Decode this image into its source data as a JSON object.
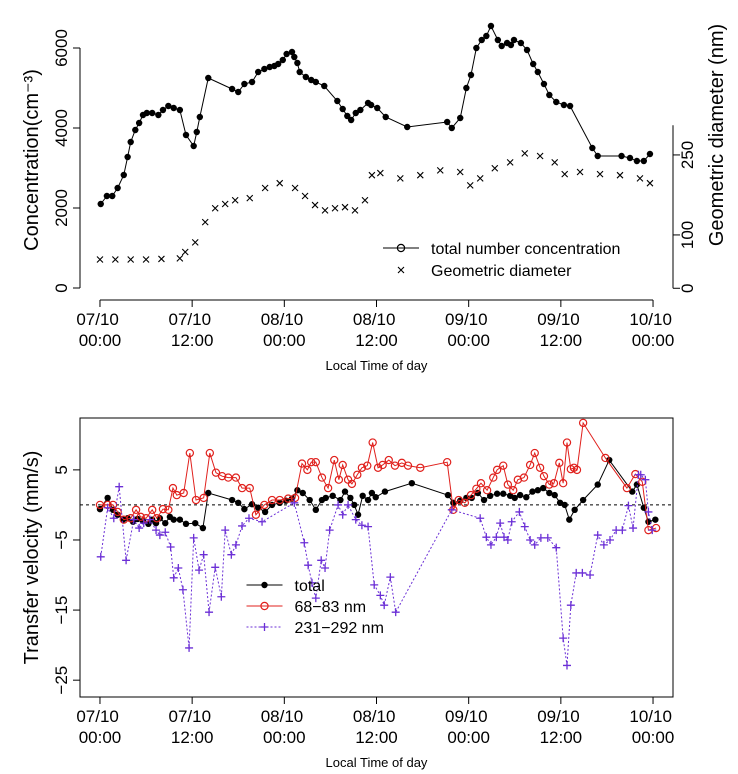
{
  "chart_data": [
    {
      "type": "line",
      "xlabel": "Local Time of day",
      "ylabel": "Concentration(cm⁻³)",
      "y2label": "Geometric diameter (nm)",
      "xlim": [
        -2.6,
        74.6
      ],
      "xticks": [
        {
          "value": 0,
          "label": "07/10 00:00"
        },
        {
          "value": 12,
          "label": "07/10 12:00"
        },
        {
          "value": 24,
          "label": "08/10 00:00"
        },
        {
          "value": 36,
          "label": "08/10 12:00"
        },
        {
          "value": 48,
          "label": "09/10 00:00"
        },
        {
          "value": 60,
          "label": "09/10 12:00"
        },
        {
          "value": 72,
          "label": "10/10 00:00"
        }
      ],
      "ylim": [
        -300,
        6700
      ],
      "yticks": [
        0,
        2000,
        4000,
        6000
      ],
      "y2lim": [
        -22,
        503
      ],
      "y2ticks": [
        0,
        100,
        250
      ],
      "box": false,
      "legend": "bottom right",
      "series": [
        {
          "name": "total number concentration",
          "color": "#000000",
          "marker": "dot",
          "legend_marker": "circle",
          "line": true,
          "x": [
            0.1,
            0.9,
            1.6,
            2.3,
            3.1,
            3.6,
            4.0,
            4.6,
            5.1,
            5.6,
            6.1,
            6.8,
            7.6,
            8.2,
            8.9,
            9.6,
            10.4,
            11.2,
            12.2,
            12.6,
            13.0,
            14.1,
            17.2,
            18.0,
            18.8,
            19.8,
            20.6,
            21.4,
            22.1,
            22.7,
            23.2,
            23.8,
            24.3,
            25.0,
            25.3,
            25.7,
            26.0,
            26.8,
            27.5,
            28.1,
            29.2,
            30.9,
            31.6,
            32.2,
            32.7,
            33.3,
            33.9,
            34.9,
            35.3,
            36.1,
            37.2,
            40.0,
            45.2,
            45.8,
            46.9,
            47.7,
            48.3,
            49.0,
            49.7,
            50.3,
            50.9,
            51.8,
            52.3,
            53.0,
            53.5,
            53.9,
            54.8,
            55.6,
            56.4,
            57.0,
            57.8,
            58.5,
            59.4,
            60.4,
            61.2,
            64.1,
            64.8,
            67.9,
            69.0,
            69.9,
            70.8,
            71.6
          ],
          "values": [
            2100,
            2300,
            2300,
            2500,
            2825,
            3275,
            3650,
            3950,
            4125,
            4325,
            4375,
            4375,
            4325,
            4450,
            4550,
            4500,
            4450,
            3825,
            3550,
            3900,
            4275,
            5250,
            4975,
            4900,
            5100,
            5150,
            5400,
            5475,
            5525,
            5550,
            5600,
            5700,
            5850,
            5900,
            5775,
            5625,
            5400,
            5275,
            5200,
            5150,
            5050,
            4675,
            4475,
            4300,
            4200,
            4375,
            4450,
            4625,
            4575,
            4500,
            4275,
            4025,
            4150,
            4000,
            4250,
            5000,
            5325,
            6000,
            6200,
            6300,
            6550,
            6200,
            6050,
            6125,
            6075,
            6200,
            6125,
            5950,
            5600,
            5400,
            5100,
            4825,
            4650,
            4575,
            4550,
            3500,
            3300,
            3300,
            3250,
            3175,
            3175,
            3350
          ]
        },
        {
          "name": "Geometric diameter",
          "color": "#000000",
          "marker": "x",
          "line": false,
          "axis": "y2",
          "x": [
            0,
            2,
            4,
            6,
            8,
            10.4,
            11.1,
            12.4,
            13.7,
            15.0,
            16.3,
            17.6,
            19.5,
            21.5,
            23.4,
            25.4,
            26.7,
            28.0,
            29.3,
            30.6,
            31.9,
            33.2,
            34.5,
            35.4,
            36.5,
            39.1,
            41.7,
            44.3,
            46.9,
            48.2,
            49.5,
            51.4,
            53.4,
            55.3,
            57.3,
            59.2,
            60.5,
            62.5,
            65.1,
            67.7,
            70.3,
            71.6
          ],
          "values": [
            54,
            54,
            54,
            54,
            55,
            56,
            68,
            86,
            124,
            150,
            158,
            165,
            169,
            188,
            197,
            188,
            173,
            156,
            146,
            150,
            152,
            146,
            165,
            212,
            216,
            206,
            212,
            221,
            218,
            193,
            206,
            225,
            236,
            253,
            248,
            236,
            214,
            218,
            214,
            212,
            206,
            197
          ]
        }
      ]
    },
    {
      "type": "line",
      "xlabel": "Local Time of day",
      "ylabel": "Transfer velocity (mm/s)",
      "xlim": [
        -2.6,
        74.6
      ],
      "xticks": [
        {
          "value": 0,
          "label": "07/10 00:00"
        },
        {
          "value": 12,
          "label": "07/10 12:00"
        },
        {
          "value": 24,
          "label": "08/10 00:00"
        },
        {
          "value": 36,
          "label": "08/10 12:00"
        },
        {
          "value": 48,
          "label": "09/10 00:00"
        },
        {
          "value": 60,
          "label": "09/10 12:00"
        },
        {
          "value": 72,
          "label": "10/10 00:00"
        }
      ],
      "ylim": [
        -27.4,
        12.4
      ],
      "yticks": [
        {
          "value": -25,
          "label": "−25"
        },
        {
          "value": -15,
          "label": "−15"
        },
        {
          "value": -5,
          "label": "−5"
        },
        5
      ],
      "box": true,
      "reference_line": 0,
      "legend": "bottom center",
      "series": [
        {
          "name": "total",
          "color": "#000000",
          "marker": "dot",
          "line": true,
          "x": [
            0,
            1.0,
            1.7,
            2.3,
            3.0,
            3.6,
            4.3,
            4.9,
            5.6,
            6.3,
            6.8,
            7.3,
            7.8,
            8.5,
            9.1,
            9.6,
            10.4,
            11.2,
            12.4,
            13.4,
            14.1,
            17.2,
            18.0,
            18.8,
            19.8,
            20.6,
            21.5,
            22.4,
            23.4,
            24.2,
            25.0,
            25.7,
            26.4,
            27.3,
            28.1,
            28.9,
            29.4,
            30.3,
            31.3,
            31.9,
            32.6,
            33.1,
            33.6,
            34.2,
            34.9,
            35.4,
            35.9,
            37.1,
            40.6,
            45.3,
            46.0,
            46.9,
            47.7,
            48.4,
            49.2,
            50.0,
            50.8,
            51.7,
            52.5,
            53.4,
            54.0,
            54.7,
            55.5,
            56.3,
            57.0,
            57.7,
            58.5,
            59.2,
            59.9,
            60.5,
            61.1,
            61.8,
            62.9,
            64.8,
            66.3,
            69.3,
            69.9,
            70.8,
            71.4,
            72.3
          ],
          "values": [
            -0.6,
            1.0,
            -0.7,
            -1.4,
            -2.1,
            -1.9,
            -2.4,
            -2.0,
            -2.3,
            -2.7,
            -2.1,
            -2.6,
            -1.9,
            -2.6,
            -1.7,
            -2.1,
            -2.1,
            -2.7,
            -2.6,
            -3.3,
            1.7,
            0.7,
            0.3,
            -0.6,
            0.1,
            -0.4,
            -1.0,
            0,
            0.3,
            0.6,
            0.9,
            2.1,
            1.7,
            0.7,
            -0.7,
            0.7,
            1.0,
            1.3,
            0.7,
            1.9,
            1.0,
            0,
            -1.4,
            1.3,
            0.7,
            1.7,
            1.1,
            1.9,
            3.1,
            1.4,
            0.3,
            0.6,
            1.0,
            1.0,
            1.7,
            0.7,
            1.3,
            1.6,
            1.6,
            1.3,
            1.0,
            1.4,
            1.1,
            1.9,
            2.1,
            2.4,
            1.7,
            1.4,
            0.3,
            0,
            -2.1,
            -0.7,
            0.7,
            2.9,
            6.4,
            1.9,
            2.9,
            -0.4,
            -2.4,
            -2.1
          ]
        },
        {
          "name": "68−83 nm",
          "color": "#e0201c",
          "marker": "circle",
          "line": true,
          "x": [
            0,
            1.0,
            1.7,
            2.3,
            3.1,
            4.0,
            4.7,
            5.3,
            6.0,
            6.8,
            7.4,
            8.2,
            8.9,
            9.5,
            10.0,
            10.9,
            11.7,
            12.5,
            13.5,
            14.3,
            15.1,
            15.9,
            16.7,
            17.7,
            18.5,
            19.5,
            20.3,
            21.4,
            22.4,
            23.4,
            24.5,
            25.4,
            26.3,
            27.0,
            27.5,
            28.1,
            28.9,
            29.7,
            30.5,
            31.1,
            31.6,
            32.3,
            32.8,
            33.5,
            34.1,
            34.8,
            35.5,
            36.2,
            36.8,
            37.6,
            38.4,
            39.3,
            40.1,
            41.7,
            45.2,
            46.0,
            46.7,
            47.5,
            48.3,
            49.0,
            49.6,
            50.4,
            51.2,
            51.7,
            52.5,
            53.1,
            53.8,
            54.4,
            55.2,
            56.0,
            56.6,
            57.3,
            57.8,
            58.5,
            59.1,
            59.8,
            60.3,
            60.8,
            61.3,
            61.7,
            62.1,
            62.9,
            65.8,
            68.6,
            69.7,
            70.6,
            71.4,
            72.4
          ],
          "values": [
            0,
            0,
            0,
            -1,
            -2.1,
            -1.9,
            -0.7,
            -1.7,
            -1.9,
            -0.7,
            -1.9,
            -0.6,
            -0.7,
            2.4,
            1.4,
            1.7,
            7.4,
            0.7,
            1.0,
            7.4,
            4.6,
            4.1,
            3.9,
            3.9,
            2.4,
            2.4,
            -1.4,
            0,
            0.7,
            0.7,
            0.9,
            1.0,
            5.9,
            5.0,
            6.1,
            6.1,
            3.9,
            2.4,
            6.4,
            3.6,
            5.7,
            3.6,
            3.0,
            4.3,
            5.3,
            5.6,
            8.9,
            5.3,
            5.7,
            6.4,
            5.6,
            6.0,
            5.6,
            5.3,
            6.1,
            -0.7,
            0.7,
            0.3,
            1.4,
            2.3,
            3.1,
            2.1,
            3.9,
            5.0,
            5.6,
            2.9,
            2.1,
            3.6,
            3.9,
            5.7,
            7.4,
            5.3,
            4.1,
            2.9,
            3.1,
            6.0,
            3.1,
            8.9,
            5.1,
            5.3,
            5.0,
            11.7,
            6.7,
            2.4,
            4.4,
            3.3,
            -3.6,
            -3.3
          ]
        },
        {
          "name": "231−292 nm",
          "color": "#6b2fd6",
          "marker": "plus",
          "line": true,
          "line_style": "dotted",
          "x": [
            0.1,
            1.0,
            1.8,
            2.5,
            3.4,
            4.4,
            5.1,
            5.7,
            6.5,
            7.3,
            7.8,
            8.5,
            9.2,
            9.6,
            10.2,
            10.8,
            11.6,
            12.2,
            12.9,
            13.5,
            14.2,
            15.0,
            15.8,
            16.3,
            17.1,
            17.7,
            18.5,
            19.4,
            21.1,
            25.3,
            26.6,
            27.1,
            27.6,
            28.1,
            28.8,
            29.3,
            29.9,
            31.0,
            31.6,
            32.3,
            33.3,
            34.1,
            34.9,
            35.7,
            36.5,
            37.0,
            37.8,
            38.5,
            45.8,
            49.5,
            50.3,
            50.9,
            51.6,
            52.1,
            52.6,
            53.1,
            53.6,
            54.6,
            55.3,
            56.0,
            56.6,
            57.4,
            58.3,
            59.4,
            60.3,
            60.8,
            61.3,
            62.0,
            62.8,
            63.8,
            64.8,
            65.6,
            66.4,
            67.2,
            68.0,
            68.8,
            69.4,
            70.1,
            70.4,
            71.0,
            71.4,
            71.9
          ],
          "values": [
            -7.4,
            -0.4,
            -1.9,
            2.6,
            -7.9,
            -2.1,
            -3.3,
            -2.6,
            -2.1,
            -3.6,
            -4.3,
            -3.9,
            -6.0,
            -10.4,
            -9.0,
            -12.1,
            -20.4,
            -4.7,
            -9.3,
            -7.1,
            -15.3,
            -8.9,
            -13.1,
            -3.6,
            -7.1,
            -5.7,
            -3.0,
            -1.9,
            -2.4,
            0.3,
            -5.4,
            -8.6,
            -11.1,
            -13.3,
            -7.9,
            -9.0,
            -3.6,
            0,
            -1.4,
            0,
            -2.1,
            -2.9,
            -3.1,
            -11.4,
            -12.9,
            -14.3,
            -10.3,
            -15.3,
            -0.7,
            -1.9,
            -4.6,
            -5.7,
            -4.6,
            -2.6,
            -4.6,
            -5.0,
            -2.4,
            -1.0,
            -3.1,
            -5.0,
            -5.7,
            -4.7,
            -4.7,
            -6.1,
            -19.0,
            -22.9,
            -14.3,
            -9.7,
            -9.7,
            -10.0,
            -4.3,
            -5.7,
            -5.0,
            -3.6,
            -3.6,
            -0.1,
            -3.3,
            4.3,
            4.3,
            3.6,
            -1.0,
            -3.6
          ]
        }
      ]
    }
  ]
}
